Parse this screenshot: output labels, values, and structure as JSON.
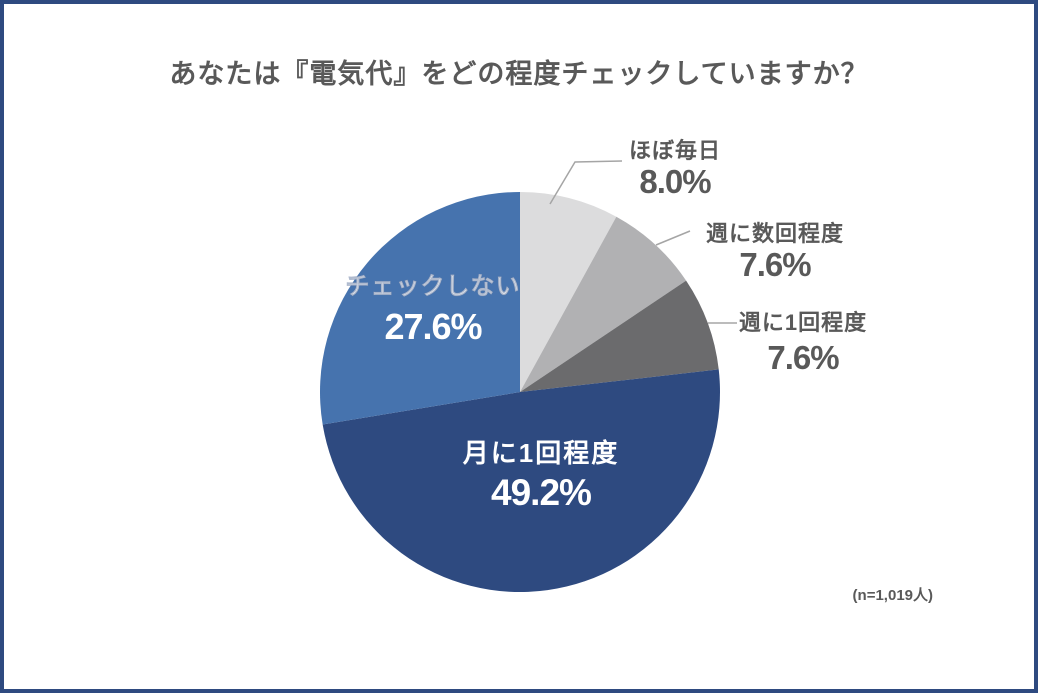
{
  "title": "あなたは『電気代』をどの程度チェックしていますか？",
  "footnote": "(n=1,019人)",
  "colors": {
    "frame_border": "#2e4a80",
    "title_text": "#595959",
    "outside_label_text": "#595959",
    "inside_label_text": "#ffffff",
    "leader_line": "#a5a5a5"
  },
  "chart_data": {
    "type": "pie",
    "title": "あなたは『電気代』をどの程度チェックしていますか？",
    "sample_size_note": "(n=1,019人)",
    "start_angle": "top (12 o'clock), clockwise",
    "legend_position": "none (direct labels)",
    "segments": [
      {
        "label": "ほぼ毎日",
        "value": 8.0,
        "display": "8.0%",
        "color": "#dcdcdd",
        "label_position": "outside"
      },
      {
        "label": "週に数回程度",
        "value": 7.6,
        "display": "7.6%",
        "color": "#b1b1b3",
        "label_position": "outside"
      },
      {
        "label": "週に1回程度",
        "value": 7.6,
        "display": "7.6%",
        "color": "#6b6b6d",
        "label_position": "outside"
      },
      {
        "label": "月に1回程度",
        "value": 49.2,
        "display": "49.2%",
        "color": "#2e4a80",
        "label_position": "inside"
      },
      {
        "label": "チェックしない",
        "value": 27.6,
        "display": "27.6%",
        "color": "#4673ae",
        "label_position": "inside"
      }
    ]
  }
}
